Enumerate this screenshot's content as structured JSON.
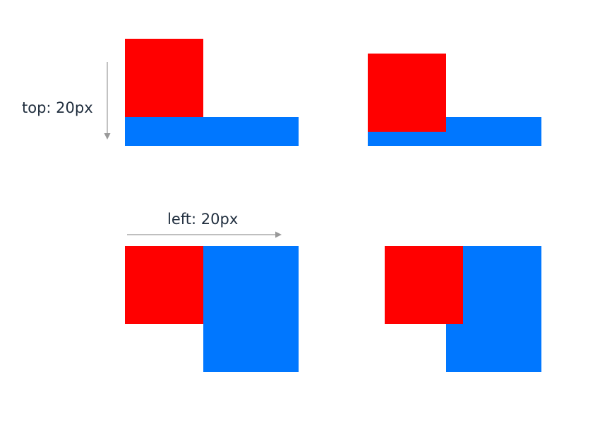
{
  "labels": {
    "top_offset": "top: 20px",
    "left_offset": "left: 20px"
  },
  "colors": {
    "positioned_box": "#ff0000",
    "static_box": "#0077ff",
    "text": "#1f2d3d",
    "arrow": "#999999",
    "background": "#ffffff"
  }
}
